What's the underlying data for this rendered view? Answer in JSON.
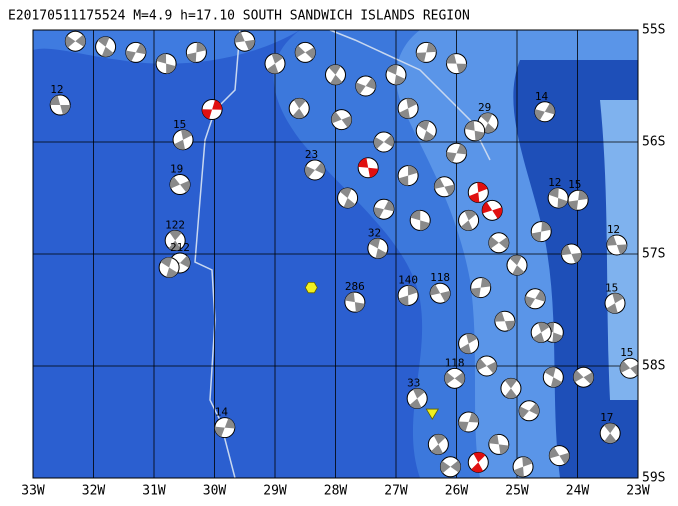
{
  "title": "E20170511175524 M=4.9 h=17.10 SOUTH SANDWICH ISLANDS REGION",
  "xlim": [
    33,
    23
  ],
  "ylim": [
    55,
    59
  ],
  "xticks": [
    {
      "value": 33,
      "label": "33W"
    },
    {
      "value": 32,
      "label": "32W"
    },
    {
      "value": 31,
      "label": "31W"
    },
    {
      "value": 30,
      "label": "30W"
    },
    {
      "value": 29,
      "label": "29W"
    },
    {
      "value": 28,
      "label": "28W"
    },
    {
      "value": 27,
      "label": "27W"
    },
    {
      "value": 26,
      "label": "26W"
    },
    {
      "value": 25,
      "label": "25W"
    },
    {
      "value": 24,
      "label": "24W"
    },
    {
      "value": 23,
      "label": "23W"
    }
  ],
  "yticks": [
    {
      "value": 55,
      "label": "55S"
    },
    {
      "value": 56,
      "label": "56S"
    },
    {
      "value": 57,
      "label": "57S"
    },
    {
      "value": 58,
      "label": "58S"
    },
    {
      "value": 59,
      "label": "59S"
    }
  ],
  "events": [
    {
      "lon": 32.55,
      "lat": 55.67,
      "label": "12"
    },
    {
      "lon": 30.52,
      "lat": 55.98,
      "label": "15"
    },
    {
      "lon": 30.57,
      "lat": 56.38,
      "label": "19"
    },
    {
      "lon": 30.65,
      "lat": 56.88,
      "label": "122"
    },
    {
      "lon": 30.57,
      "lat": 57.08,
      "label": "212"
    },
    {
      "lon": 30.75,
      "lat": 57.12
    },
    {
      "lon": 29.83,
      "lat": 58.55,
      "label": "14"
    },
    {
      "lon": 27.68,
      "lat": 57.43,
      "label": "286"
    },
    {
      "lon": 26.8,
      "lat": 57.37,
      "label": "140"
    },
    {
      "lon": 26.27,
      "lat": 57.35,
      "label": "118"
    },
    {
      "lon": 26.65,
      "lat": 58.29,
      "label": "33"
    },
    {
      "lon": 26.03,
      "lat": 58.11,
      "label": "118"
    },
    {
      "lon": 25.48,
      "lat": 55.83,
      "label": "29"
    },
    {
      "lon": 24.54,
      "lat": 55.73,
      "label": "14"
    },
    {
      "lon": 24.32,
      "lat": 56.5,
      "label": "12"
    },
    {
      "lon": 23.99,
      "lat": 56.52,
      "label": "15"
    },
    {
      "lon": 23.35,
      "lat": 56.92,
      "label": "12"
    },
    {
      "lon": 23.38,
      "lat": 57.44,
      "label": "15"
    },
    {
      "lon": 23.13,
      "lat": 58.02,
      "label": "15"
    },
    {
      "lon": 23.46,
      "lat": 58.6,
      "label": "17"
    },
    {
      "lon": 28.34,
      "lat": 56.25,
      "label": "23"
    },
    {
      "lon": 27.3,
      "lat": 56.95,
      "label": "32"
    },
    {
      "lon": 30.04,
      "lat": 55.71,
      "red": true
    },
    {
      "lon": 27.46,
      "lat": 56.23,
      "red": true
    },
    {
      "lon": 25.64,
      "lat": 56.45,
      "red": true
    },
    {
      "lon": 25.41,
      "lat": 56.61,
      "red": true
    },
    {
      "lon": 25.64,
      "lat": 58.86,
      "red": true
    },
    {
      "lon": 32.3,
      "lat": 55.1
    },
    {
      "lon": 31.8,
      "lat": 55.15
    },
    {
      "lon": 31.3,
      "lat": 55.2
    },
    {
      "lon": 30.8,
      "lat": 55.3
    },
    {
      "lon": 30.3,
      "lat": 55.2
    },
    {
      "lon": 29.5,
      "lat": 55.1
    },
    {
      "lon": 29,
      "lat": 55.3
    },
    {
      "lon": 28.5,
      "lat": 55.2
    },
    {
      "lon": 28,
      "lat": 55.4
    },
    {
      "lon": 27.5,
      "lat": 55.5
    },
    {
      "lon": 27,
      "lat": 55.4
    },
    {
      "lon": 26.5,
      "lat": 55.2
    },
    {
      "lon": 26,
      "lat": 55.3
    },
    {
      "lon": 26.8,
      "lat": 55.7
    },
    {
      "lon": 27.9,
      "lat": 55.8
    },
    {
      "lon": 28.6,
      "lat": 55.7
    },
    {
      "lon": 27.2,
      "lat": 56.0
    },
    {
      "lon": 26.5,
      "lat": 55.9
    },
    {
      "lon": 26,
      "lat": 56.1
    },
    {
      "lon": 25.7,
      "lat": 55.9
    },
    {
      "lon": 26.8,
      "lat": 56.3
    },
    {
      "lon": 26.2,
      "lat": 56.4
    },
    {
      "lon": 25.8,
      "lat": 56.7
    },
    {
      "lon": 25.3,
      "lat": 56.9
    },
    {
      "lon": 25,
      "lat": 57.1
    },
    {
      "lon": 24.7,
      "lat": 57.4
    },
    {
      "lon": 24.4,
      "lat": 57.7
    },
    {
      "lon": 25.6,
      "lat": 57.3
    },
    {
      "lon": 25.2,
      "lat": 57.6
    },
    {
      "lon": 25.8,
      "lat": 57.8
    },
    {
      "lon": 25.5,
      "lat": 58.0
    },
    {
      "lon": 25.1,
      "lat": 58.2
    },
    {
      "lon": 24.8,
      "lat": 58.4
    },
    {
      "lon": 24.4,
      "lat": 58.1
    },
    {
      "lon": 25.8,
      "lat": 58.5
    },
    {
      "lon": 25.3,
      "lat": 58.7
    },
    {
      "lon": 24.9,
      "lat": 58.9
    },
    {
      "lon": 24.3,
      "lat": 58.8
    },
    {
      "lon": 26.3,
      "lat": 58.7
    },
    {
      "lon": 26.1,
      "lat": 58.9
    },
    {
      "lon": 27.8,
      "lat": 56.5
    },
    {
      "lon": 27.2,
      "lat": 56.6
    },
    {
      "lon": 26.6,
      "lat": 56.7
    },
    {
      "lon": 24.6,
      "lat": 56.8
    },
    {
      "lon": 24.1,
      "lat": 57.0
    },
    {
      "lon": 24.6,
      "lat": 57.7
    },
    {
      "lon": 23.9,
      "lat": 58.1
    }
  ],
  "markers": [
    {
      "shape": "hexagon",
      "lon": 28.4,
      "lat": 57.3
    },
    {
      "shape": "triangle",
      "lon": 26.4,
      "lat": 58.42
    }
  ]
}
